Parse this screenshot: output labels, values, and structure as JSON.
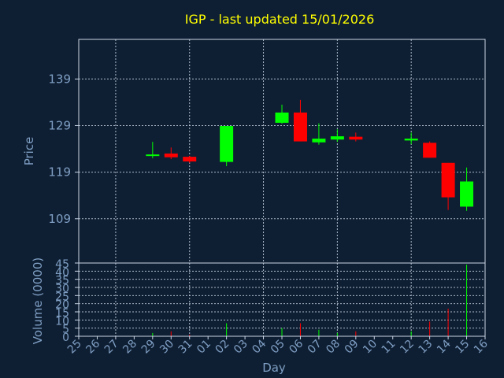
{
  "chart_data": {
    "type": "candlestick",
    "title": "IGP - last updated 15/01/2026",
    "xlabel": "Day",
    "price_axis": {
      "label": "Price",
      "ticks": [
        109,
        119,
        129,
        139
      ],
      "ylim": [
        99.5,
        147.5
      ]
    },
    "volume_axis": {
      "label": "Volume (0000)",
      "ticks": [
        0,
        5,
        10,
        15,
        20,
        25,
        30,
        35,
        40,
        45
      ],
      "ylim": [
        0,
        45
      ]
    },
    "days": [
      "25",
      "26",
      "27",
      "28",
      "29",
      "30",
      "31",
      "01",
      "02",
      "03",
      "04",
      "05",
      "06",
      "07",
      "08",
      "09",
      "10",
      "11",
      "12",
      "13",
      "14",
      "15",
      "16"
    ],
    "grid": true,
    "up_color": "#00ff00",
    "down_color": "#ff0000",
    "candles": [
      {
        "day": "29",
        "open": 122.5,
        "close": 122.8,
        "high": 125.5,
        "low": 122.0,
        "volume": 2
      },
      {
        "day": "30",
        "open": 123.0,
        "close": 122.2,
        "high": 124.3,
        "low": 121.8,
        "volume": 3
      },
      {
        "day": "31",
        "open": 122.3,
        "close": 121.3,
        "high": 122.5,
        "low": 121.0,
        "volume": 1
      },
      {
        "day": "02",
        "open": 121.2,
        "close": 128.9,
        "high": 128.9,
        "low": 120.3,
        "volume": 8
      },
      {
        "day": "05",
        "open": 129.6,
        "close": 131.8,
        "high": 133.5,
        "low": 129.4,
        "volume": 5
      },
      {
        "day": "06",
        "open": 131.8,
        "close": 125.6,
        "high": 134.5,
        "low": 125.6,
        "volume": 8
      },
      {
        "day": "07",
        "open": 125.4,
        "close": 126.2,
        "high": 129.5,
        "low": 124.9,
        "volume": 4
      },
      {
        "day": "08",
        "open": 126.0,
        "close": 126.7,
        "high": 128.2,
        "low": 125.5,
        "volume": 2
      },
      {
        "day": "09",
        "open": 126.6,
        "close": 126.0,
        "high": 127.5,
        "low": 125.6,
        "volume": 3
      },
      {
        "day": "12",
        "open": 125.8,
        "close": 126.2,
        "high": 127.5,
        "low": 125.0,
        "volume": 3
      },
      {
        "day": "13",
        "open": 125.3,
        "close": 122.1,
        "high": 125.6,
        "low": 122.1,
        "volume": 9
      },
      {
        "day": "14",
        "open": 121.0,
        "close": 113.6,
        "high": 121.0,
        "low": 110.9,
        "volume": 17
      },
      {
        "day": "15",
        "open": 111.6,
        "close": 117.0,
        "high": 120.0,
        "low": 110.7,
        "volume": 44
      }
    ]
  }
}
